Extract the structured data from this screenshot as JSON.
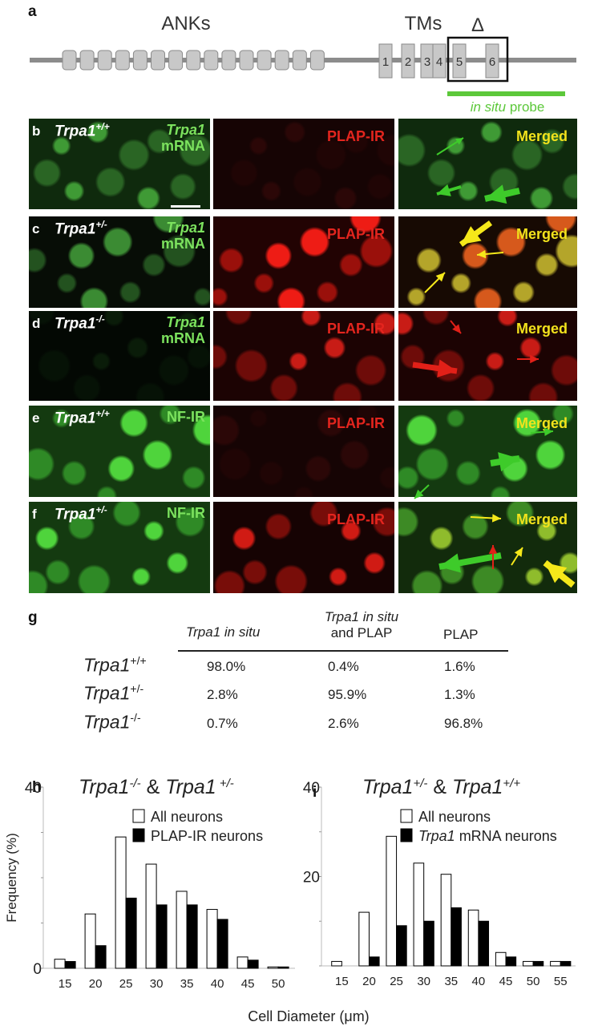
{
  "panel_letters": {
    "a": "a",
    "b": "b",
    "c": "c",
    "d": "d",
    "e": "e",
    "f": "f",
    "g": "g",
    "h": "h",
    "i": "i"
  },
  "schematic": {
    "anks_label": "ANKs",
    "tms_label": "TMs",
    "delta_label": "Δ",
    "tm_numbers": [
      "1",
      "2",
      "3",
      "4",
      "5",
      "6"
    ],
    "probe_label_italic": "in situ",
    "probe_label_rest": " probe",
    "probe_color": "#5cc83a"
  },
  "image_rows": [
    {
      "letter": "b",
      "genotype": "Trpa1",
      "sup": "+/+",
      "col1_label": [
        "Trpa1",
        "mRNA"
      ],
      "col1_italic_first": true,
      "col1_kind": "green-sparse",
      "col2_label": "PLAP-IR",
      "col2_kind": "dark-red",
      "col3_label": "Merged",
      "col3_kind": "green-sparse"
    },
    {
      "letter": "c",
      "genotype": "Trpa1",
      "sup": "+/-",
      "col1_label": [
        "Trpa1",
        "mRNA"
      ],
      "col1_italic_first": true,
      "col1_kind": "green-dark",
      "col2_label": "PLAP-IR",
      "col2_kind": "red-bright",
      "col3_label": "Merged",
      "col3_kind": "yellow"
    },
    {
      "letter": "d",
      "genotype": "Trpa1",
      "sup": "-/-",
      "col1_label": [
        "Trpa1",
        "mRNA"
      ],
      "col1_italic_first": true,
      "col1_kind": "black",
      "col2_label": "PLAP-IR",
      "col2_kind": "red",
      "col3_label": "Merged",
      "col3_kind": "red"
    },
    {
      "letter": "e",
      "genotype": "Trpa1",
      "sup": "+/+",
      "col1_label": [
        "NF-IR"
      ],
      "col1_italic_first": false,
      "col1_kind": "green-bright",
      "col2_label": "PLAP-IR",
      "col2_kind": "dark-red",
      "col3_label": "Merged",
      "col3_kind": "green-bright"
    },
    {
      "letter": "f",
      "genotype": "Trpa1",
      "sup": "+/-",
      "col1_label": [
        "NF-IR"
      ],
      "col1_italic_first": false,
      "col1_kind": "green-bright",
      "col2_label": "PLAP-IR",
      "col2_kind": "red-fibers",
      "col3_label": "Merged",
      "col3_kind": "mixed"
    }
  ],
  "table": {
    "col_headers": [
      {
        "line1_italic": "Trpa1 in situ",
        "line2": ""
      },
      {
        "line1_italic": "Trpa1 in situ",
        "line2": "and PLAP"
      },
      {
        "line1_italic": "",
        "line2": "PLAP"
      }
    ],
    "rows": [
      {
        "gene": "Trpa1",
        "sup": "+/+",
        "values": [
          "98.0%",
          "0.4%",
          "1.6%"
        ]
      },
      {
        "gene": "Trpa1",
        "sup": "+/-",
        "values": [
          "2.8%",
          "95.9%",
          "1.3%"
        ]
      },
      {
        "gene": "Trpa1",
        "sup": "-/-",
        "values": [
          "0.7%",
          "2.6%",
          "96.8%"
        ]
      }
    ]
  },
  "chart_data": [
    {
      "type": "bar",
      "title_parts": [
        "Trpa1",
        "-/-",
        " & ",
        "Trpa1",
        " +/-"
      ],
      "ylabel": "Frequency (%)",
      "xlabel": "",
      "ylim": [
        0,
        40
      ],
      "yticks_labeled": [
        "0",
        "",
        "",
        "",
        "40"
      ],
      "categories": [
        "15",
        "20",
        "25",
        "30",
        "35",
        "40",
        "45",
        "50"
      ],
      "series": [
        {
          "name": "All neurons",
          "fill": "#ffffff",
          "values": [
            2,
            12,
            29,
            23,
            17,
            13,
            2.5,
            0.3
          ]
        },
        {
          "name": "PLAP-IR neurons",
          "fill": "#000000",
          "values": [
            1.5,
            5,
            15.5,
            14,
            14,
            10.8,
            1.8,
            0.3
          ]
        }
      ],
      "legend_position": "top-right"
    },
    {
      "type": "bar",
      "title_parts": [
        "Trpa1",
        "+/-",
        " & ",
        "Trpa1",
        "+/+"
      ],
      "ylabel": "",
      "xlabel": "Cell Diameter (μm)",
      "ylim": [
        0,
        40
      ],
      "yticks_labeled": [
        "",
        "",
        "20",
        "",
        "40"
      ],
      "categories": [
        "15",
        "20",
        "25",
        "30",
        "35",
        "40",
        "45",
        "50",
        "55"
      ],
      "series": [
        {
          "name": "All neurons",
          "fill": "#ffffff",
          "values": [
            1,
            12,
            29,
            23,
            20.5,
            12.5,
            3,
            1,
            1
          ]
        },
        {
          "name": "Trpa1 mRNA neurons",
          "fill": "#000000",
          "values": [
            0,
            2,
            9,
            10,
            13,
            10,
            2,
            1,
            1
          ]
        }
      ],
      "legend_position": "top-right"
    }
  ]
}
